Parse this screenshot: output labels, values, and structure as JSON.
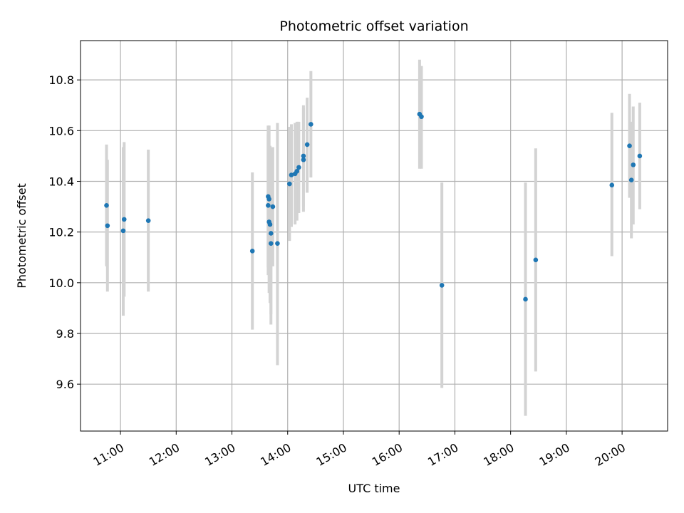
{
  "chart_data": {
    "type": "scatter",
    "title": "Photometric offset variation",
    "xlabel": "UTC time",
    "ylabel": "Photometric offset",
    "xlim": [
      "10:17",
      "20:49"
    ],
    "ylim": [
      9.415,
      10.955
    ],
    "x_ticks": [
      "11:00",
      "12:00",
      "13:00",
      "14:00",
      "15:00",
      "16:00",
      "17:00",
      "18:00",
      "19:00",
      "20:00"
    ],
    "y_ticks": [
      9.6,
      9.8,
      10.0,
      10.2,
      10.4,
      10.6,
      10.8
    ],
    "grid": true,
    "colors": {
      "points": "#1f77b4",
      "error_bars": "#d3d3d3",
      "grid": "#b0b0b0"
    },
    "series": [
      {
        "points": [
          {
            "time": "10:45",
            "y": 10.305,
            "ylow": 10.065,
            "yhigh": 10.545
          },
          {
            "time": "10:46",
            "y": 10.225,
            "ylow": 9.965,
            "yhigh": 10.485
          },
          {
            "time": "11:03",
            "y": 10.205,
            "ylow": 9.87,
            "yhigh": 10.535
          },
          {
            "time": "11:04",
            "y": 10.25,
            "ylow": 9.945,
            "yhigh": 10.555
          },
          {
            "time": "11:30",
            "y": 10.245,
            "ylow": 9.965,
            "yhigh": 10.525
          },
          {
            "time": "13:22",
            "y": 10.125,
            "ylow": 9.815,
            "yhigh": 10.435
          },
          {
            "time": "13:39",
            "y": 10.34,
            "ylow": 10.06,
            "yhigh": 10.62
          },
          {
            "time": "13:39",
            "y": 10.305,
            "ylow": 10.03,
            "yhigh": 10.585
          },
          {
            "time": "13:40",
            "y": 10.33,
            "ylow": 10.04,
            "yhigh": 10.62
          },
          {
            "time": "13:40",
            "y": 10.24,
            "ylow": 9.96,
            "yhigh": 10.52
          },
          {
            "time": "13:41",
            "y": 10.23,
            "ylow": 9.92,
            "yhigh": 10.54
          },
          {
            "time": "13:42",
            "y": 10.195,
            "ylow": 9.875,
            "yhigh": 10.515
          },
          {
            "time": "13:42",
            "y": 10.155,
            "ylow": 9.835,
            "yhigh": 10.475
          },
          {
            "time": "13:44",
            "y": 10.3,
            "ylow": 10.065,
            "yhigh": 10.535
          },
          {
            "time": "13:49",
            "y": 10.155,
            "ylow": 9.675,
            "yhigh": 10.63
          },
          {
            "time": "14:02",
            "y": 10.39,
            "ylow": 10.165,
            "yhigh": 10.615
          },
          {
            "time": "14:04",
            "y": 10.425,
            "ylow": 10.22,
            "yhigh": 10.625
          },
          {
            "time": "14:08",
            "y": 10.43,
            "ylow": 10.23,
            "yhigh": 10.63
          },
          {
            "time": "14:10",
            "y": 10.44,
            "ylow": 10.245,
            "yhigh": 10.635
          },
          {
            "time": "14:12",
            "y": 10.455,
            "ylow": 10.275,
            "yhigh": 10.635
          },
          {
            "time": "14:17",
            "y": 10.485,
            "ylow": 10.28,
            "yhigh": 10.69
          },
          {
            "time": "14:17",
            "y": 10.5,
            "ylow": 10.3,
            "yhigh": 10.7
          },
          {
            "time": "14:21",
            "y": 10.545,
            "ylow": 10.355,
            "yhigh": 10.73
          },
          {
            "time": "14:25",
            "y": 10.625,
            "ylow": 10.415,
            "yhigh": 10.835
          },
          {
            "time": "16:22",
            "y": 10.665,
            "ylow": 10.45,
            "yhigh": 10.88
          },
          {
            "time": "16:24",
            "y": 10.655,
            "ylow": 10.45,
            "yhigh": 10.855
          },
          {
            "time": "16:46",
            "y": 9.99,
            "ylow": 9.585,
            "yhigh": 10.395
          },
          {
            "time": "18:16",
            "y": 9.935,
            "ylow": 9.475,
            "yhigh": 10.395
          },
          {
            "time": "18:27",
            "y": 10.09,
            "ylow": 9.65,
            "yhigh": 10.53
          },
          {
            "time": "19:49",
            "y": 10.385,
            "ylow": 10.105,
            "yhigh": 10.67
          },
          {
            "time": "20:08",
            "y": 10.54,
            "ylow": 10.335,
            "yhigh": 10.745
          },
          {
            "time": "20:10",
            "y": 10.405,
            "ylow": 10.175,
            "yhigh": 10.635
          },
          {
            "time": "20:12",
            "y": 10.465,
            "ylow": 10.23,
            "yhigh": 10.695
          },
          {
            "time": "20:19",
            "y": 10.5,
            "ylow": 10.29,
            "yhigh": 10.71
          }
        ]
      }
    ]
  }
}
